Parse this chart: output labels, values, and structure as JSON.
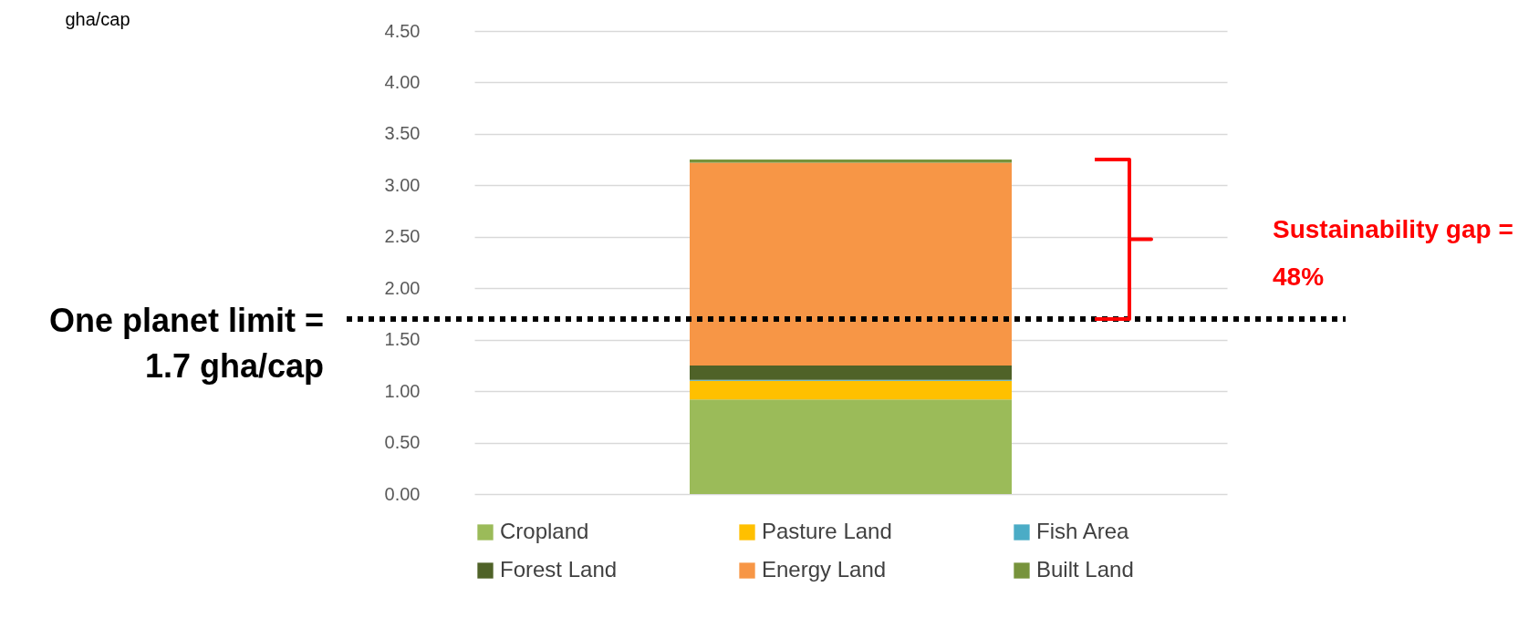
{
  "chart_data": {
    "type": "bar",
    "stacked": true,
    "categories": [
      null
    ],
    "series": [
      {
        "name": "Cropland",
        "color": "#9bbb59",
        "values": [
          0.92
        ]
      },
      {
        "name": "Pasture Land",
        "color": "#ffc000",
        "values": [
          0.18
        ]
      },
      {
        "name": "Fish Area",
        "color": "#4bacc6",
        "values": [
          0.01
        ]
      },
      {
        "name": "Forest Land",
        "color": "#4f6228",
        "values": [
          0.14
        ]
      },
      {
        "name": "Energy Land",
        "color": "#f79646",
        "values": [
          1.97
        ]
      },
      {
        "name": "Built Land",
        "color": "#77933c",
        "values": [
          0.03
        ]
      }
    ],
    "ylim": [
      0,
      4.5
    ],
    "yticks": [
      {
        "value": 0,
        "label": "0.00"
      },
      {
        "value": 0.5,
        "label": "0.50"
      },
      {
        "value": 1,
        "label": "1.00"
      },
      {
        "value": 1.5,
        "label": "1.50"
      },
      {
        "value": 2,
        "label": "2.00"
      },
      {
        "value": 2.5,
        "label": "2.50"
      },
      {
        "value": 3,
        "label": "3.00"
      },
      {
        "value": 3.5,
        "label": "3.50"
      },
      {
        "value": 4,
        "label": "4.00"
      },
      {
        "value": 4.5,
        "label": "4.50"
      }
    ],
    "grid": "y",
    "legend": "bottom",
    "tick_labels": "y",
    "ref_lines": [
      {
        "axis": "y",
        "value": 1.7,
        "label": "One planet limit =\n1.7 gha/cap",
        "color": "#000000",
        "line_style": "dotted"
      }
    ],
    "annotations": [
      "gha/cap",
      "Sustainability gap =\n48%"
    ]
  }
}
